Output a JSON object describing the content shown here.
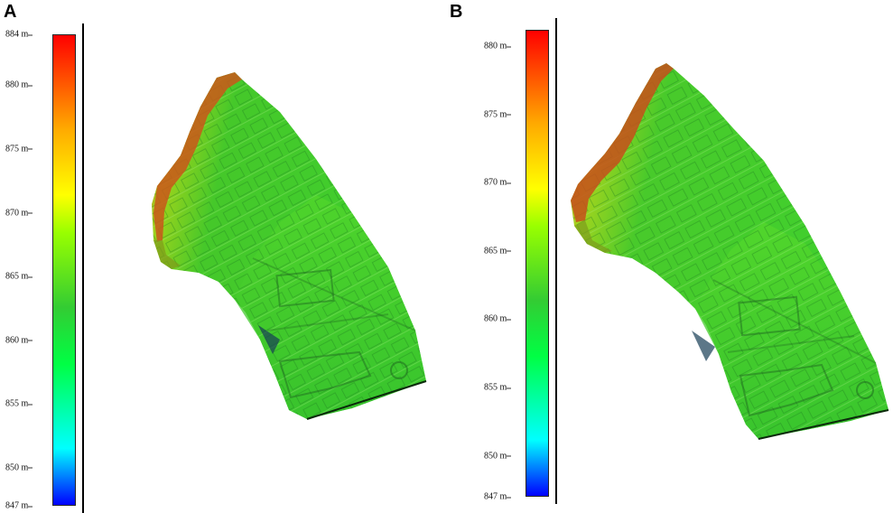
{
  "panels": [
    {
      "letter": "A",
      "scale_unit": "m",
      "scale_min": 847,
      "scale_max": 884,
      "ticks": [
        "884 m",
        "880 m",
        "875 m",
        "870 m",
        "865 m",
        "860 m",
        "855 m",
        "850 m",
        "847 m"
      ],
      "tick_values": [
        884,
        880,
        875,
        870,
        865,
        860,
        855,
        850,
        847
      ]
    },
    {
      "letter": "B",
      "scale_unit": "m",
      "scale_min": 847,
      "scale_max": 881.2,
      "ticks": [
        "880 m",
        "875 m",
        "870 m",
        "865 m",
        "860 m",
        "855 m",
        "850 m",
        "847 m"
      ],
      "tick_values": [
        880,
        875,
        870,
        865,
        860,
        855,
        850,
        847
      ]
    }
  ],
  "colormap": [
    "#0000ff",
    "#00ffff",
    "#00ff44",
    "#33cc33",
    "#99ff00",
    "#ffff00",
    "#ffaa00",
    "#ff5500",
    "#ff0000"
  ]
}
